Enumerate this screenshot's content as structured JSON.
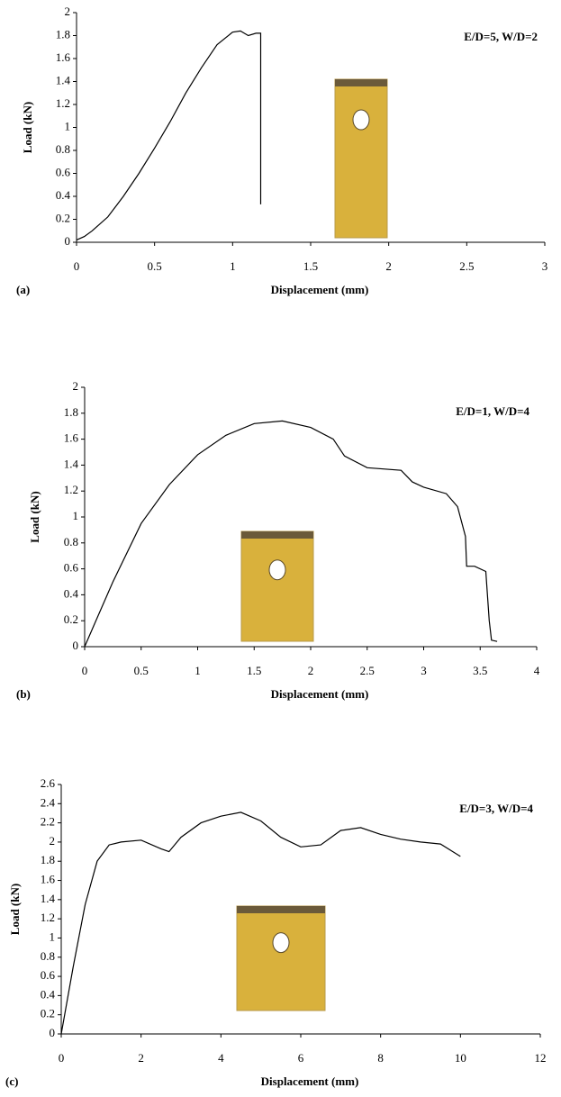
{
  "chart_data": [
    {
      "type": "line",
      "panel_label": "(a)",
      "annotation": "E/D=5, W/D=2",
      "xlabel": "Displacement (mm)",
      "ylabel": "Load (kN)",
      "color": "#000000",
      "x": [
        0,
        0.05,
        0.1,
        0.2,
        0.3,
        0.4,
        0.5,
        0.6,
        0.7,
        0.8,
        0.9,
        1.0,
        1.05,
        1.1,
        1.15,
        1.18,
        1.18
      ],
      "values": [
        0.02,
        0.05,
        0.1,
        0.22,
        0.4,
        0.6,
        0.82,
        1.05,
        1.3,
        1.52,
        1.72,
        1.83,
        1.84,
        1.8,
        1.82,
        1.82,
        0.33
      ],
      "xlim": [
        0,
        3
      ],
      "ylim": [
        0,
        2
      ],
      "xticks": [
        0,
        0.5,
        1,
        1.5,
        2,
        2.5,
        3
      ],
      "yticks": [
        0,
        0.2,
        0.4,
        0.6,
        0.8,
        1,
        1.2,
        1.4,
        1.6,
        1.8,
        2
      ]
    },
    {
      "type": "line",
      "panel_label": "(b)",
      "annotation": "E/D=1, W/D=4",
      "xlabel": "Displacement (mm)",
      "ylabel": "Load (kN)",
      "color": "#000000",
      "x": [
        0,
        0.1,
        0.25,
        0.5,
        0.75,
        1.0,
        1.25,
        1.5,
        1.75,
        2.0,
        2.2,
        2.3,
        2.5,
        2.8,
        2.9,
        3.0,
        3.2,
        3.3,
        3.37,
        3.38,
        3.45,
        3.55,
        3.58,
        3.6,
        3.65
      ],
      "values": [
        0,
        0.2,
        0.5,
        0.95,
        1.25,
        1.48,
        1.63,
        1.72,
        1.74,
        1.69,
        1.6,
        1.47,
        1.38,
        1.36,
        1.27,
        1.23,
        1.18,
        1.08,
        0.85,
        0.62,
        0.62,
        0.58,
        0.2,
        0.05,
        0.04
      ],
      "xlim": [
        0,
        4
      ],
      "ylim": [
        0,
        2
      ],
      "xticks": [
        0,
        0.5,
        1,
        1.5,
        2,
        2.5,
        3,
        3.5,
        4
      ],
      "yticks": [
        0,
        0.2,
        0.4,
        0.6,
        0.8,
        1,
        1.2,
        1.4,
        1.6,
        1.8,
        2
      ]
    },
    {
      "type": "line",
      "panel_label": "(c)",
      "annotation": "E/D=3, W/D=4",
      "xlabel": "Displacement (mm)",
      "ylabel": "Load (kN)",
      "color": "#000000",
      "x": [
        0,
        0.3,
        0.6,
        0.9,
        1.2,
        1.5,
        2,
        2.5,
        2.7,
        3,
        3.5,
        4,
        4.5,
        5,
        5.5,
        6,
        6.5,
        7,
        7.5,
        8,
        8.5,
        9,
        9.5,
        10
      ],
      "values": [
        0,
        0.7,
        1.35,
        1.8,
        1.97,
        2.0,
        2.02,
        1.93,
        1.9,
        2.05,
        2.2,
        2.27,
        2.31,
        2.22,
        2.05,
        1.95,
        1.97,
        2.12,
        2.15,
        2.08,
        2.03,
        2.0,
        1.98,
        1.85
      ],
      "xlim": [
        0,
        12
      ],
      "ylim": [
        0,
        2.6
      ],
      "xticks": [
        0,
        2,
        4,
        6,
        8,
        10,
        12
      ],
      "yticks": [
        0,
        0.2,
        0.4,
        0.6,
        0.8,
        1,
        1.2,
        1.4,
        1.6,
        1.8,
        2,
        2.2,
        2.4,
        2.6
      ]
    }
  ]
}
